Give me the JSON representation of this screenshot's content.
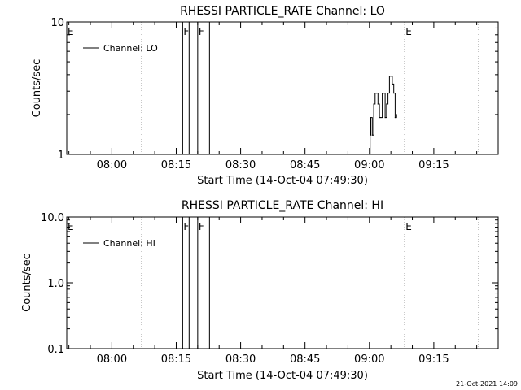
{
  "timestamp": "21-Oct-2021 14:09",
  "chart_data": [
    {
      "type": "line",
      "title": "RHESSI PARTICLE_RATE Channel: LO",
      "xlabel": "Start Time (14-Oct-04 07:49:30)",
      "ylabel": "Counts/sec",
      "x_ticks": [
        "08:00",
        "08:15",
        "08:30",
        "08:45",
        "09:00",
        "09:15"
      ],
      "y_ticks": [
        "1",
        "10"
      ],
      "yscale": "log",
      "ylim": [
        1,
        10
      ],
      "xlim": [
        "07:49:30",
        "09:30:00"
      ],
      "legend": {
        "entries": [
          "Channel: LO"
        ],
        "placement": "top-left"
      },
      "series": [
        {
          "name": "Channel: LO",
          "x": [
            "09:00:00",
            "09:00:10",
            "09:00:20",
            "09:00:40",
            "09:01:00",
            "09:01:20",
            "09:01:40",
            "09:02:00",
            "09:02:20",
            "09:02:40",
            "09:03:00",
            "09:03:20",
            "09:03:40",
            "09:04:00",
            "09:04:20",
            "09:04:40",
            "09:05:00",
            "09:05:20",
            "09:05:40",
            "09:06:00",
            "09:06:20"
          ],
          "y": [
            1.0,
            1.4,
            1.9,
            1.4,
            2.4,
            2.9,
            2.9,
            2.4,
            1.9,
            1.9,
            2.9,
            2.9,
            1.9,
            2.4,
            2.9,
            3.9,
            3.9,
            3.4,
            2.9,
            1.9,
            2.0
          ]
        }
      ],
      "annotations": [
        {
          "label": "E",
          "x": "07:49:30",
          "style": "dotted"
        },
        {
          "label": "",
          "x": "08:07:00",
          "style": "dotted"
        },
        {
          "label": "F",
          "x": "08:16:30",
          "style": "solid"
        },
        {
          "label": "",
          "x": "08:18:00",
          "style": "solid"
        },
        {
          "label": "F",
          "x": "08:20:00",
          "style": "solid"
        },
        {
          "label": "",
          "x": "08:22:45",
          "style": "solid"
        },
        {
          "label": "E",
          "x": "09:08:15",
          "style": "dotted"
        },
        {
          "label": "",
          "x": "09:25:30",
          "style": "dotted"
        }
      ]
    },
    {
      "type": "line",
      "title": "RHESSI PARTICLE_RATE Channel: HI",
      "xlabel": "Start Time (14-Oct-04 07:49:30)",
      "ylabel": "Counts/sec",
      "x_ticks": [
        "08:00",
        "08:15",
        "08:30",
        "08:45",
        "09:00",
        "09:15"
      ],
      "y_ticks": [
        "0.1",
        "1.0",
        "10.0"
      ],
      "yscale": "log",
      "ylim": [
        0.1,
        10
      ],
      "xlim": [
        "07:49:30",
        "09:30:00"
      ],
      "legend": {
        "entries": [
          "Channel: HI"
        ],
        "placement": "top-left"
      },
      "series": [
        {
          "name": "Channel: HI",
          "x": [],
          "y": []
        }
      ],
      "annotations": [
        {
          "label": "E",
          "x": "07:49:30",
          "style": "dotted"
        },
        {
          "label": "",
          "x": "08:07:00",
          "style": "dotted"
        },
        {
          "label": "F",
          "x": "08:16:30",
          "style": "solid"
        },
        {
          "label": "",
          "x": "08:18:00",
          "style": "solid"
        },
        {
          "label": "F",
          "x": "08:20:00",
          "style": "solid"
        },
        {
          "label": "",
          "x": "08:22:45",
          "style": "solid"
        },
        {
          "label": "E",
          "x": "09:08:15",
          "style": "dotted"
        },
        {
          "label": "",
          "x": "09:25:30",
          "style": "dotted"
        }
      ]
    }
  ]
}
